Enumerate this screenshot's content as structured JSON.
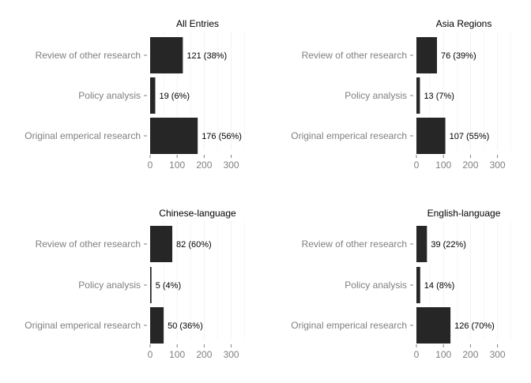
{
  "chart_data": [
    {
      "type": "bar",
      "orientation": "horizontal",
      "title": "All Entries",
      "categories": [
        "Review of other research",
        "Policy analysis",
        "Original emperical research"
      ],
      "values": [
        121,
        19,
        176
      ],
      "data_labels": [
        "121 (38%)",
        "19 (6%)",
        "176 (56%)"
      ],
      "xlim": [
        0,
        350
      ],
      "xticks": [
        0,
        100,
        200,
        300
      ],
      "grid": true,
      "bar_color": "#262626"
    },
    {
      "type": "bar",
      "orientation": "horizontal",
      "title": "Asia Regions",
      "categories": [
        "Review of other research",
        "Policy analysis",
        "Original emperical research"
      ],
      "values": [
        76,
        13,
        107
      ],
      "data_labels": [
        "76 (39%)",
        "13 (7%)",
        "107 (55%)"
      ],
      "xlim": [
        0,
        350
      ],
      "xticks": [
        0,
        100,
        200,
        300
      ],
      "grid": true,
      "bar_color": "#262626"
    },
    {
      "type": "bar",
      "orientation": "horizontal",
      "title": "Chinese-language",
      "categories": [
        "Review of other research",
        "Policy analysis",
        "Original emperical research"
      ],
      "values": [
        82,
        5,
        50
      ],
      "data_labels": [
        "82 (60%)",
        "5 (4%)",
        "50 (36%)"
      ],
      "xlim": [
        0,
        350
      ],
      "xticks": [
        0,
        100,
        200,
        300
      ],
      "grid": true,
      "bar_color": "#262626"
    },
    {
      "type": "bar",
      "orientation": "horizontal",
      "title": "English-language",
      "categories": [
        "Review of other research",
        "Policy analysis",
        "Original emperical research"
      ],
      "values": [
        39,
        14,
        126
      ],
      "data_labels": [
        "39 (22%)",
        "14 (8%)",
        "126 (70%)"
      ],
      "xlim": [
        0,
        350
      ],
      "xticks": [
        0,
        100,
        200,
        300
      ],
      "grid": true,
      "bar_color": "#262626"
    }
  ]
}
